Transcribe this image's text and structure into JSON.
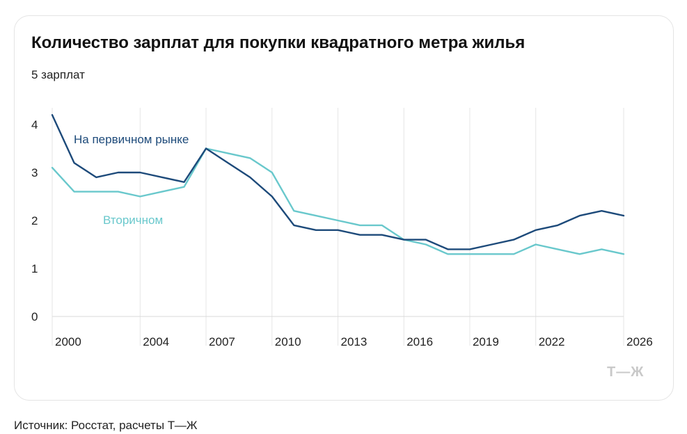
{
  "title": "Количество зарплат для покупки квадратного метра жилья",
  "unit_label": "5 зарплат",
  "source": "Источник: Росстат, расчеты Т—Ж",
  "logo_text": "Т—Ж",
  "colors": {
    "primary": "#1d4a7a",
    "secondary": "#69c8cc",
    "grid": "#e6e6e6",
    "axis": "#d9d9d9"
  },
  "chart_data": {
    "type": "line",
    "title": "Количество зарплат для покупки квадратного метра жилья",
    "xlabel": "",
    "ylabel": "",
    "xlim": [
      2000,
      2026
    ],
    "ylim": [
      0,
      4.2
    ],
    "y_ticks": [
      0,
      1,
      2,
      3,
      4
    ],
    "x_tick_labels": [
      "2000",
      "2004",
      "2007",
      "2010",
      "2013",
      "2016",
      "2019",
      "2022",
      "2026"
    ],
    "grid": "vertical",
    "x": [
      2000,
      2001,
      2002,
      2003,
      2004,
      2005,
      2006,
      2007,
      2008,
      2009,
      2010,
      2011,
      2012,
      2013,
      2014,
      2015,
      2016,
      2017,
      2018,
      2019,
      2020,
      2021,
      2022,
      2023,
      2024,
      2025,
      2026
    ],
    "series": [
      {
        "name": "На первичном рынке",
        "color": "#1d4a7a",
        "values": [
          4.2,
          3.2,
          2.9,
          3.0,
          3.0,
          2.9,
          2.8,
          3.5,
          3.2,
          2.9,
          2.5,
          1.9,
          1.8,
          1.8,
          1.7,
          1.7,
          1.6,
          1.6,
          1.4,
          1.4,
          1.5,
          1.6,
          1.8,
          1.9,
          2.1,
          2.2,
          2.1
        ]
      },
      {
        "name": "Вторичном",
        "color": "#69c8cc",
        "values": [
          3.1,
          2.6,
          2.6,
          2.6,
          2.5,
          2.6,
          2.7,
          3.5,
          3.4,
          3.3,
          3.0,
          2.2,
          2.1,
          2.0,
          1.9,
          1.9,
          1.6,
          1.5,
          1.3,
          1.3,
          1.3,
          1.3,
          1.5,
          1.4,
          1.3,
          1.4,
          1.3
        ]
      }
    ]
  }
}
